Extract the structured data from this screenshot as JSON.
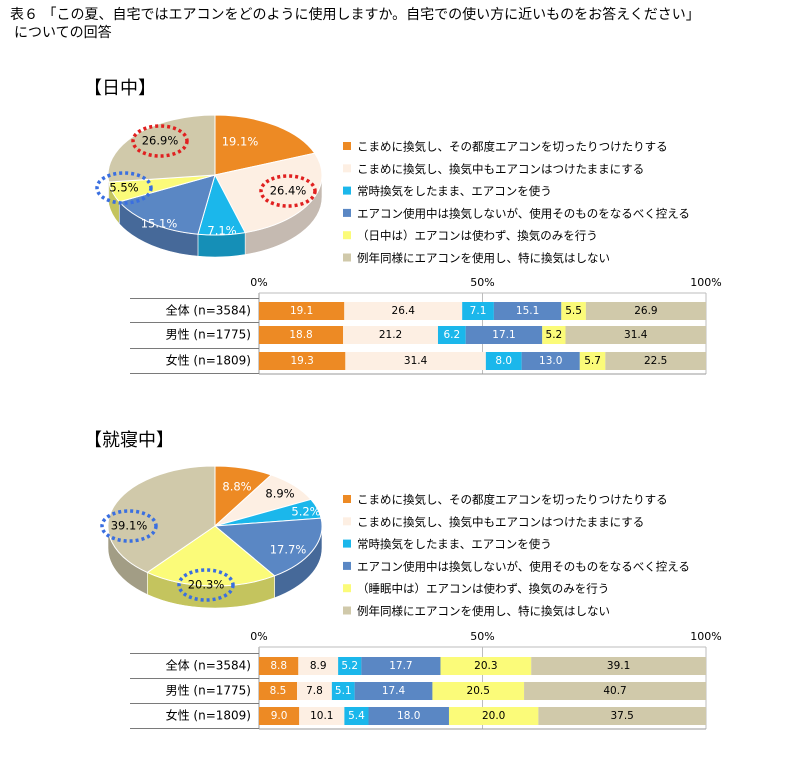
{
  "title_line1": "表６ 「この夏、自宅ではエアコンをどのように使用しますか。自宅での使い方に近いものをお答えください」",
  "title_line2": "についての回答",
  "colors": [
    "#ED8A24",
    "#FDEFE3",
    "#1BB7EB",
    "#5A87C4",
    "#FBFB79",
    "#D0C9AA"
  ],
  "chart_data": [
    {
      "type": "pie",
      "heading": "【日中】",
      "legend": [
        "こまめに換気し、その都度エアコンを切ったりつけたりする",
        "こまめに換気し、換気中もエアコンはつけたままにする",
        "常時換気をしたまま、エアコンを使う",
        "エアコン使用中は換気しないが、使用そのものをなるべく控える",
        "（日中は）エアコンは使わず、換気のみを行う",
        "例年同様にエアコンを使用し、特に換気はしない"
      ],
      "pie_labels": [
        "19.1%",
        "26.4%",
        "7.1%",
        "15.1%",
        "5.5%",
        "26.9%"
      ],
      "values": [
        19.1,
        26.4,
        7.1,
        15.1,
        5.5,
        26.9
      ],
      "axis_ticks": [
        "0%",
        "50%",
        "100%"
      ],
      "rows": [
        {
          "label": "全体 (n=3584)",
          "values": [
            19.1,
            26.4,
            7.1,
            15.1,
            5.5,
            26.9
          ],
          "labels": [
            "19.1",
            "26.4",
            "7.1",
            "15.1",
            "5.5",
            "26.9"
          ]
        },
        {
          "label": "男性 (n=1775)",
          "values": [
            18.8,
            21.2,
            6.2,
            17.1,
            5.2,
            31.4
          ],
          "labels": [
            "18.8",
            "21.2",
            "6.2",
            "17.1",
            "5.2",
            "31.4"
          ]
        },
        {
          "label": "女性 (n=1809)",
          "values": [
            19.3,
            31.4,
            8.0,
            13.0,
            5.7,
            22.5
          ],
          "labels": [
            "19.3",
            "31.4",
            "8.0",
            "13.0",
            "5.7",
            "22.5"
          ]
        }
      ]
    },
    {
      "type": "pie",
      "heading": "【就寝中】",
      "legend": [
        "こまめに換気し、その都度エアコンを切ったりつけたりする",
        "こまめに換気し、換気中もエアコンはつけたままにする",
        "常時換気をしたまま、エアコンを使う",
        "エアコン使用中は換気しないが、使用そのものをなるべく控える",
        "（睡眠中は）エアコンは使わず、換気のみを行う",
        "例年同様にエアコンを使用し、特に換気はしない"
      ],
      "pie_labels": [
        "8.8%",
        "8.9%",
        "5.2%",
        "17.7%",
        "20.3%",
        "39.1%"
      ],
      "values": [
        8.8,
        8.9,
        5.2,
        17.7,
        20.3,
        39.1
      ],
      "axis_ticks": [
        "0%",
        "50%",
        "100%"
      ],
      "rows": [
        {
          "label": "全体 (n=3584)",
          "values": [
            8.8,
            8.9,
            5.2,
            17.7,
            20.3,
            39.1
          ],
          "labels": [
            "8.8",
            "8.9",
            "5.2",
            "17.7",
            "20.3",
            "39.1"
          ]
        },
        {
          "label": "男性 (n=1775)",
          "values": [
            8.5,
            7.8,
            5.1,
            17.4,
            20.5,
            40.7
          ],
          "labels": [
            "8.5",
            "7.8",
            "5.1",
            "17.4",
            "20.5",
            "40.7"
          ]
        },
        {
          "label": "女性 (n=1809)",
          "values": [
            9.0,
            10.1,
            5.4,
            18.0,
            20.0,
            37.5
          ],
          "labels": [
            "9.0",
            "10.1",
            "5.4",
            "18.0",
            "20.0",
            "37.5"
          ]
        }
      ]
    }
  ]
}
